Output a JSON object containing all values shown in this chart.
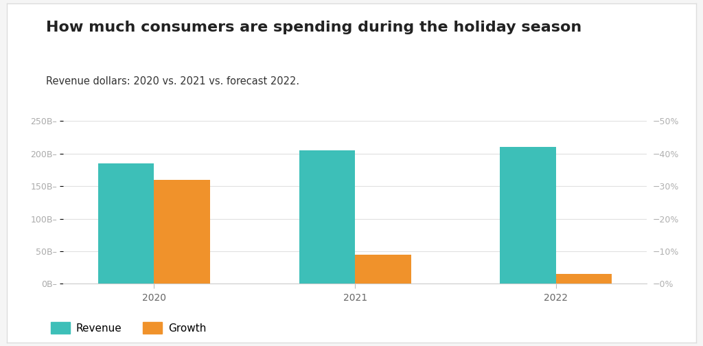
{
  "title": "How much consumers are spending during the holiday season",
  "subtitle": "Revenue dollars: 2020 vs. 2021 vs. forecast 2022.",
  "years": [
    "2020",
    "2021",
    "2022"
  ],
  "revenue_billions": [
    185,
    205,
    210
  ],
  "growth_pct": [
    32,
    9,
    3
  ],
  "revenue_color": "#3dbfb8",
  "growth_color": "#f0922b",
  "left_ylim": [
    0,
    250
  ],
  "right_ylim": [
    0,
    50
  ],
  "left_yticks": [
    0,
    50,
    100,
    150,
    200,
    250
  ],
  "left_yticklabels": [
    "0B–",
    "50B–",
    "100B–",
    "150B–",
    "200B–",
    "250B–"
  ],
  "right_yticks": [
    0,
    10,
    20,
    30,
    40,
    50
  ],
  "right_yticklabels": [
    "−0%",
    "−10%",
    "−20%",
    "−30%",
    "−40%",
    "−50%"
  ],
  "background_color": "#f5f5f5",
  "card_color": "#ffffff",
  "title_fontsize": 16,
  "subtitle_fontsize": 10.5,
  "legend_labels": [
    "Revenue",
    "Growth"
  ],
  "bar_width": 0.32,
  "x_positions": [
    0,
    1.15,
    2.3
  ],
  "title_color": "#222222",
  "subtitle_color": "#333333",
  "left_tick_color": "#aaaaaa",
  "right_tick_color": "#b0b0b0",
  "grid_color": "#e0e0e0",
  "xtick_color": "#666666"
}
